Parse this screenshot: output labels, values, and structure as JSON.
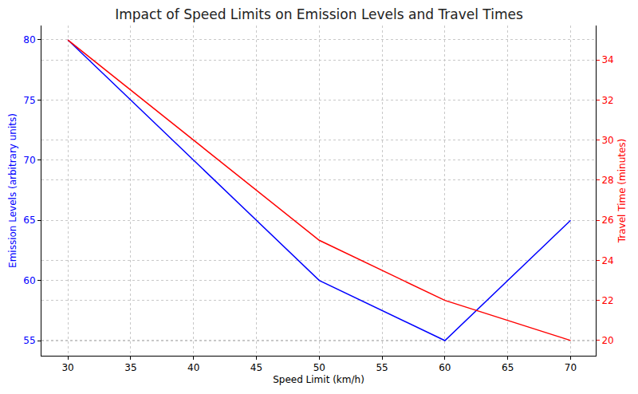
{
  "chart_data": {
    "type": "line",
    "title": "Impact of Speed Limits on Emission Levels and Travel Times",
    "x_label": "Speed Limit (km/h)",
    "y_label": "Emission Levels (arbitrary units)",
    "y2_label": "Travel Time (minutes)",
    "x": [
      30,
      50,
      60,
      70
    ],
    "series": [
      {
        "name": "Emission Levels",
        "color": "blue",
        "values": [
          80,
          60,
          55,
          65
        ],
        "axis": "y"
      },
      {
        "name": "Travel Time",
        "color": "red",
        "values": [
          35,
          25,
          22,
          20
        ],
        "axis": "y2"
      }
    ],
    "xlim": [
      27.9,
      72.0
    ],
    "xticks": [
      30,
      35,
      40,
      45,
      50,
      55,
      60,
      65,
      70
    ],
    "ylim": [
      53.74,
      81.19
    ],
    "yticks": [
      55,
      60,
      65,
      70,
      75,
      80
    ],
    "y2lim": [
      19.24,
      35.72
    ],
    "y2ticks": [
      20,
      22,
      24,
      26,
      28,
      30,
      32,
      34
    ],
    "grid": true
  }
}
